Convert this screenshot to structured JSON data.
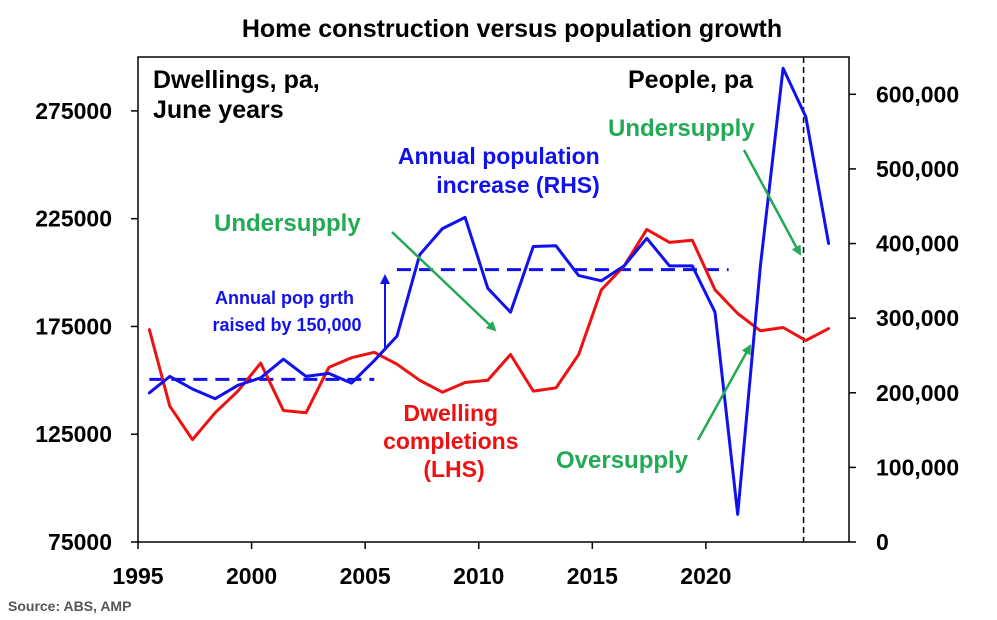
{
  "chart_data": {
    "type": "line",
    "title": "Home construction versus population growth",
    "source": "Source: ABS, AMP",
    "lhs_label_lines": [
      "Dwellings, pa,",
      "June years"
    ],
    "rhs_label": "People, pa",
    "x_range": [
      1995,
      2026.3
    ],
    "x_ticks": [
      1995,
      2000,
      2005,
      2010,
      2015,
      2020
    ],
    "x_tick_labels": [
      "1995",
      "2000",
      "2005",
      "2010",
      "2015",
      "2020"
    ],
    "lhs_range": [
      75000,
      300000
    ],
    "lhs_ticks": [
      75000,
      125000,
      175000,
      225000,
      275000
    ],
    "lhs_tick_labels": [
      "75000",
      "125000",
      "175000",
      "225000",
      "275000"
    ],
    "rhs_range": [
      0,
      650000
    ],
    "rhs_ticks": [
      0,
      100000,
      200000,
      300000,
      400000,
      500000,
      600000
    ],
    "rhs_tick_labels": [
      "0",
      "100,000",
      "200,000",
      "300,000",
      "400,000",
      "500,000",
      "600,000"
    ],
    "vline_x": 2024.3,
    "series": [
      {
        "name": "Dwelling completions (LHS)",
        "axis": "left",
        "color": "#ee1111",
        "x": [
          1995.5,
          1996.4,
          1997.4,
          1998.4,
          1999.4,
          2000.4,
          2001.4,
          2002.4,
          2003.4,
          2004.4,
          2005.4,
          2006.4,
          2007.4,
          2008.4,
          2009.4,
          2010.4,
          2011.4,
          2012.4,
          2013.4,
          2014.4,
          2015.4,
          2016.4,
          2017.4,
          2018.4,
          2019.4,
          2020.4,
          2021.4,
          2022.4,
          2023.4,
          2024.4,
          2025.4
        ],
        "values": [
          173500,
          138000,
          122500,
          135000,
          145000,
          158000,
          136000,
          135000,
          156000,
          160500,
          163000,
          157500,
          150000,
          144500,
          149000,
          150000,
          162000,
          145000,
          146500,
          162000,
          192000,
          203000,
          220000,
          214000,
          215000,
          192000,
          181000,
          173000,
          174500,
          168500,
          174000
        ]
      },
      {
        "name": "Annual population increase (RHS)",
        "axis": "right",
        "color": "#1111ee",
        "x": [
          1995.5,
          1996.4,
          1997.4,
          1998.4,
          1999.4,
          2000.4,
          2001.4,
          2002.4,
          2003.4,
          2004.4,
          2005.4,
          2006.4,
          2007.4,
          2008.4,
          2009.4,
          2010.4,
          2011.4,
          2012.4,
          2013.4,
          2014.4,
          2015.4,
          2016.4,
          2017.4,
          2018.4,
          2019.4,
          2020.4,
          2021.4,
          2022.4,
          2023.4,
          2024.4,
          2025.4
        ],
        "values": [
          200000,
          222000,
          205000,
          192000,
          210000,
          220000,
          245000,
          222000,
          226000,
          213000,
          243000,
          276000,
          385000,
          420000,
          435000,
          340000,
          308000,
          396000,
          397000,
          357000,
          350000,
          370000,
          407000,
          370000,
          370000,
          308000,
          37000,
          370000,
          635000,
          570000,
          400000
        ]
      }
    ],
    "dashed_levels": [
      {
        "axis": "right",
        "x_start": 1995.5,
        "x_end": 2005.4,
        "value": 218000
      },
      {
        "axis": "right",
        "x_start": 2006.4,
        "x_end": 2021.0,
        "value": 365000
      }
    ],
    "annotations": {
      "pop_label_lines": [
        "Annual population",
        "increase (RHS)"
      ],
      "dw_label_lines": [
        "Dwelling",
        "completions",
        "(LHS)"
      ],
      "undersupply_1": "Undersupply",
      "undersupply_2": "Undersupply",
      "oversupply": "Oversupply",
      "raised_lines": [
        "Annual pop grth",
        "raised by 150,000"
      ]
    },
    "colors": {
      "annotation_green": "#22aa55",
      "annotation_blue": "#1111ee",
      "annotation_red": "#ee1111"
    }
  }
}
